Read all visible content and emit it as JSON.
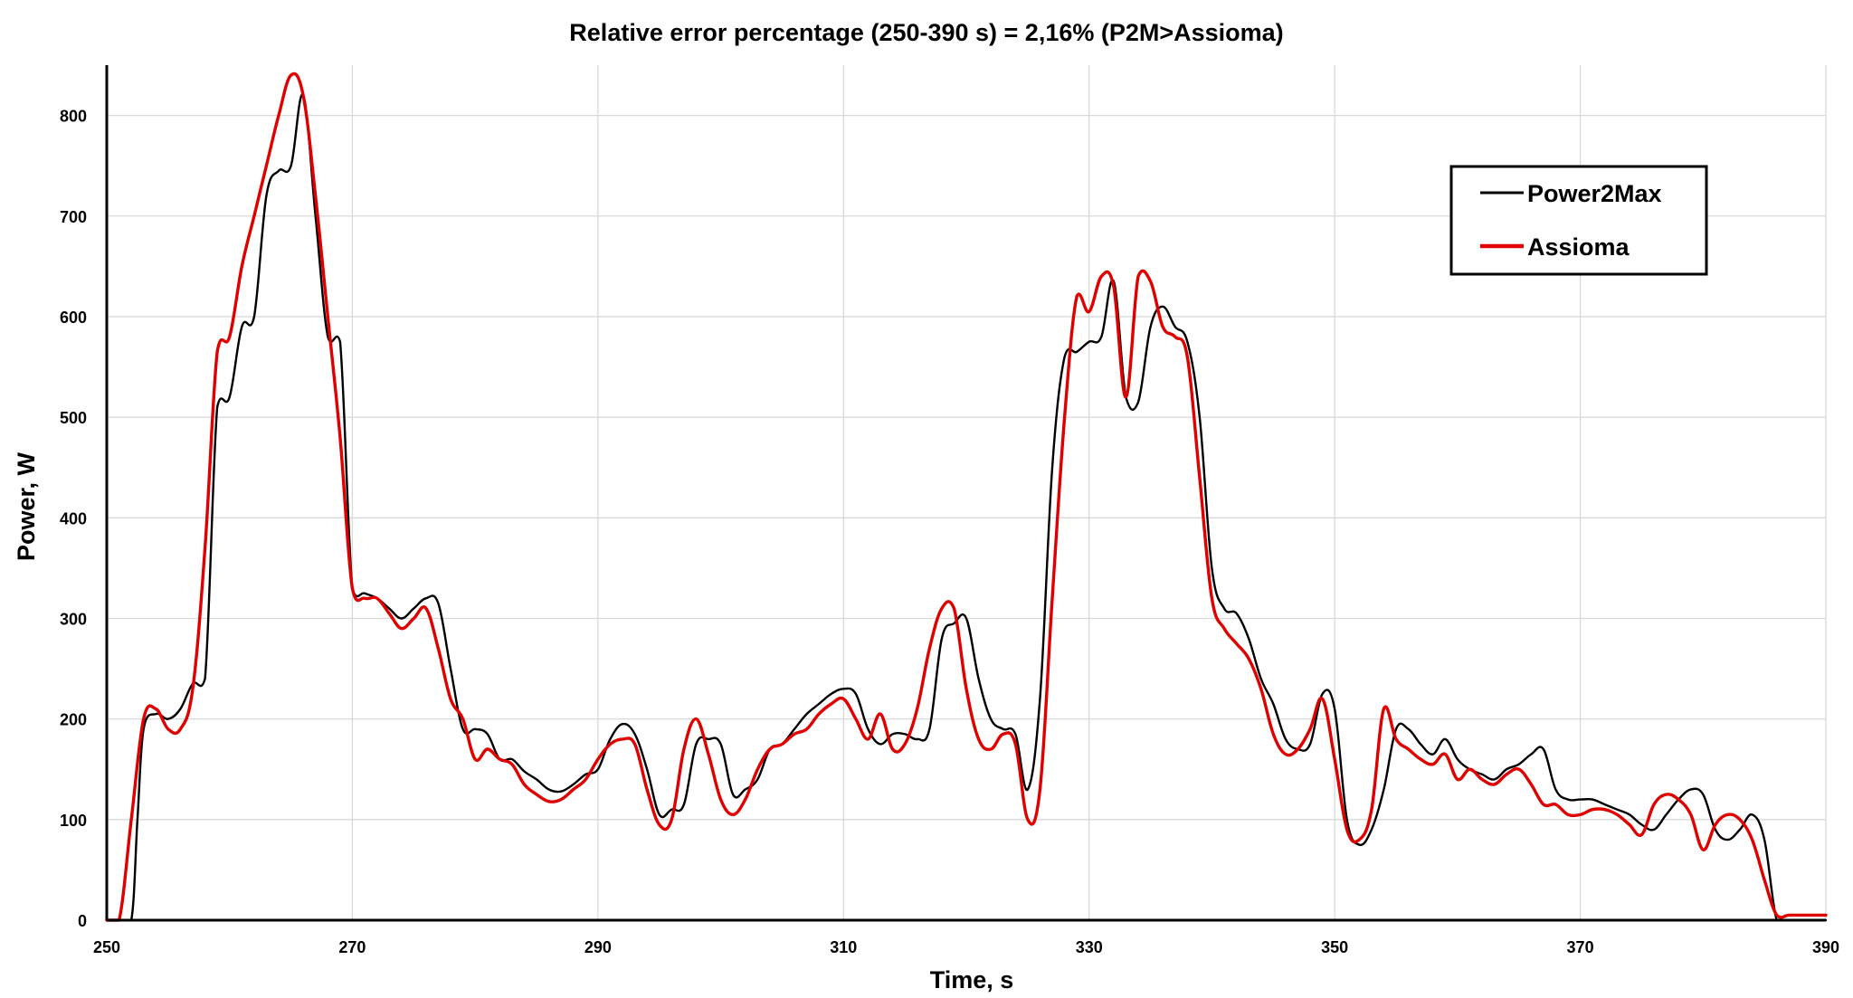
{
  "chart_data": {
    "type": "line",
    "title": "Relative error percentage (250-390 s) = 2,16% (P2M>Assioma)",
    "xlabel": "Time, s",
    "ylabel": "Power, W",
    "xlim": [
      250,
      390
    ],
    "ylim": [
      0,
      850
    ],
    "x_ticks": [
      250,
      270,
      290,
      310,
      330,
      350,
      370,
      390
    ],
    "y_ticks": [
      0,
      100,
      200,
      300,
      400,
      500,
      600,
      700,
      800
    ],
    "x_tick_labels": [
      "250",
      "270",
      "290",
      "310",
      "330",
      "350",
      "370",
      "390"
    ],
    "y_tick_labels": [
      "0",
      "100",
      "200",
      "300",
      "400",
      "500",
      "600",
      "700",
      "800"
    ],
    "grid": true,
    "legend_position": "top-right",
    "colors": {
      "Power2Max": "#000000",
      "Assioma": "#e00000"
    },
    "series": [
      {
        "name": "Power2Max",
        "x": [
          250,
          251,
          252,
          252.5,
          253,
          254,
          255,
          256,
          257,
          258,
          259,
          260,
          261,
          262,
          263,
          264,
          265,
          266,
          267,
          268,
          269,
          270,
          271,
          272,
          273,
          274,
          275,
          276,
          277,
          278,
          279,
          280,
          281,
          282,
          283,
          284,
          285,
          286,
          287,
          288,
          289,
          290,
          291,
          292,
          293,
          294,
          295,
          296,
          297,
          298,
          299,
          300,
          301,
          302,
          303,
          304,
          305,
          306,
          307,
          308,
          309,
          310,
          311,
          312,
          313,
          314,
          315,
          316,
          317,
          318,
          319,
          320,
          321,
          322,
          323,
          324,
          325,
          326,
          327,
          328,
          329,
          330,
          331,
          332,
          333,
          334,
          335,
          336,
          337,
          338,
          339,
          340,
          341,
          342,
          343,
          344,
          345,
          346,
          347,
          348,
          349,
          350,
          351,
          352,
          353,
          354,
          355,
          356,
          357,
          358,
          359,
          360,
          361,
          362,
          363,
          364,
          365,
          366,
          367,
          368,
          369,
          370,
          371,
          372,
          373,
          374,
          375,
          376,
          377,
          378,
          379,
          380,
          381,
          382,
          383,
          384,
          385,
          386,
          387,
          388,
          389,
          390
        ],
        "y": [
          0,
          0,
          0,
          100,
          190,
          205,
          200,
          210,
          235,
          240,
          510,
          520,
          590,
          600,
          720,
          745,
          750,
          820,
          700,
          580,
          575,
          330,
          325,
          320,
          310,
          300,
          310,
          320,
          315,
          250,
          190,
          190,
          185,
          160,
          160,
          148,
          140,
          130,
          128,
          135,
          145,
          150,
          180,
          195,
          185,
          150,
          105,
          110,
          115,
          175,
          180,
          175,
          125,
          130,
          140,
          170,
          175,
          190,
          205,
          215,
          225,
          230,
          225,
          190,
          175,
          185,
          185,
          180,
          190,
          280,
          295,
          300,
          240,
          200,
          190,
          185,
          130,
          220,
          450,
          560,
          565,
          575,
          580,
          635,
          520,
          515,
          590,
          610,
          590,
          575,
          500,
          350,
          310,
          305,
          280,
          240,
          215,
          180,
          170,
          175,
          225,
          210,
          100,
          75,
          90,
          130,
          190,
          190,
          175,
          165,
          180,
          160,
          150,
          145,
          140,
          150,
          155,
          165,
          170,
          130,
          120,
          120,
          120,
          115,
          110,
          105,
          95,
          90,
          105,
          120,
          130,
          125,
          90,
          80,
          90,
          105,
          80,
          0,
          0,
          0,
          0,
          0
        ]
      },
      {
        "name": "Assioma",
        "x": [
          250,
          251,
          252,
          253,
          254,
          255,
          256,
          257,
          258,
          259,
          260,
          261,
          262,
          263,
          264,
          265,
          266,
          267,
          268,
          269,
          270,
          271,
          272,
          273,
          274,
          275,
          276,
          277,
          278,
          279,
          280,
          281,
          282,
          283,
          284,
          285,
          286,
          287,
          288,
          289,
          290,
          291,
          292,
          293,
          294,
          295,
          296,
          297,
          298,
          299,
          300,
          301,
          302,
          303,
          304,
          305,
          306,
          307,
          308,
          309,
          310,
          311,
          312,
          313,
          314,
          315,
          316,
          317,
          318,
          319,
          320,
          321,
          322,
          323,
          324,
          325,
          326,
          327,
          328,
          329,
          330,
          331,
          332,
          333,
          334,
          335,
          336,
          337,
          338,
          339,
          340,
          341,
          342,
          343,
          344,
          345,
          346,
          347,
          348,
          349,
          350,
          351,
          352,
          353,
          354,
          355,
          356,
          357,
          358,
          359,
          360,
          361,
          362,
          363,
          364,
          365,
          366,
          367,
          368,
          369,
          370,
          371,
          372,
          373,
          374,
          375,
          376,
          377,
          378,
          379,
          380,
          381,
          382,
          383,
          384,
          385,
          386,
          387,
          388,
          389,
          390
        ],
        "y": [
          0,
          0,
          100,
          200,
          210,
          190,
          190,
          230,
          370,
          565,
          580,
          650,
          700,
          750,
          800,
          840,
          820,
          720,
          600,
          480,
          330,
          320,
          320,
          305,
          290,
          300,
          310,
          270,
          220,
          200,
          160,
          170,
          160,
          155,
          135,
          125,
          118,
          120,
          130,
          140,
          160,
          175,
          180,
          175,
          130,
          95,
          100,
          170,
          200,
          165,
          120,
          105,
          120,
          150,
          170,
          175,
          185,
          190,
          205,
          215,
          220,
          200,
          180,
          205,
          170,
          175,
          210,
          270,
          310,
          310,
          230,
          180,
          170,
          185,
          175,
          100,
          130,
          320,
          500,
          620,
          605,
          640,
          630,
          520,
          640,
          635,
          590,
          580,
          560,
          440,
          320,
          290,
          275,
          260,
          230,
          185,
          165,
          170,
          190,
          220,
          160,
          90,
          80,
          110,
          210,
          180,
          170,
          160,
          155,
          165,
          140,
          150,
          140,
          135,
          145,
          150,
          135,
          115,
          115,
          105,
          105,
          110,
          110,
          105,
          95,
          85,
          115,
          125,
          120,
          105,
          70,
          95,
          105,
          100,
          80,
          40,
          5,
          5,
          5,
          5,
          5
        ]
      }
    ]
  }
}
